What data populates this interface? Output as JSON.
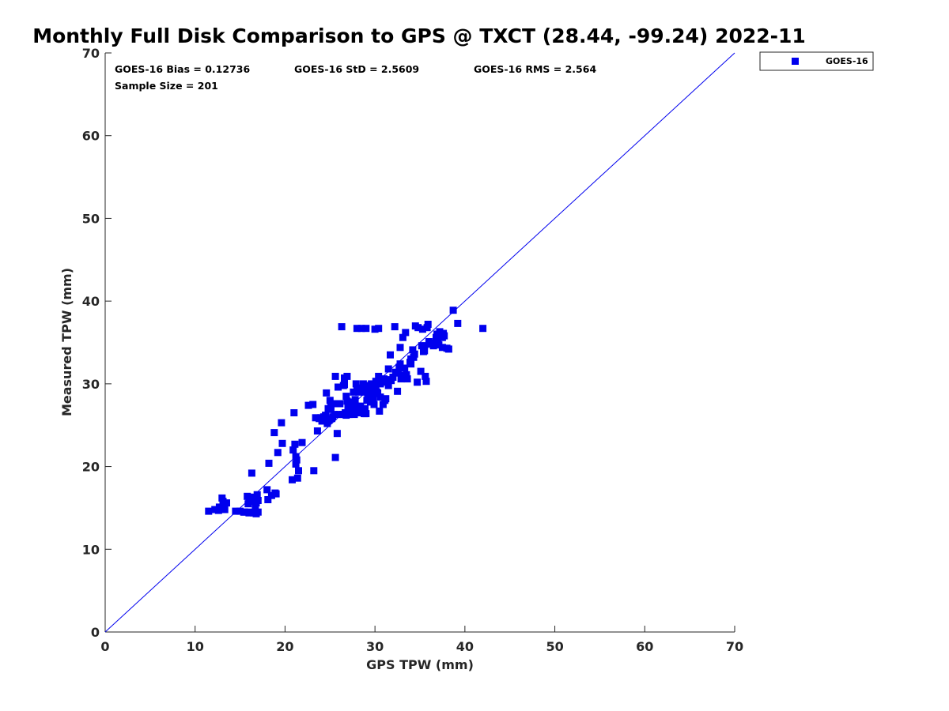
{
  "chart_data": {
    "type": "scatter",
    "title": "Monthly Full Disk Comparison to GPS @ TXCT (28.44, -99.24) 2022-11",
    "xlabel": "GPS TPW (mm)",
    "ylabel": "Measured TPW (mm)",
    "xlim": [
      0,
      70
    ],
    "ylim": [
      0,
      70
    ],
    "x_ticks": [
      "0",
      "10",
      "20",
      "30",
      "40",
      "50",
      "60",
      "70"
    ],
    "y_ticks": [
      "0",
      "10",
      "20",
      "30",
      "40",
      "50",
      "60",
      "70"
    ],
    "grid": false,
    "legend_position": "outside-top-right",
    "reference_line": {
      "type": "one-to-one",
      "from": [
        0,
        0
      ],
      "to": [
        70,
        70
      ]
    },
    "stats": {
      "bias": "GOES-16 Bias = 0.12736",
      "std": "GOES-16 StD = 2.5609",
      "rms": "GOES-16 RMS = 2.564",
      "sample_size": "Sample Size = 201"
    },
    "series": [
      {
        "name": "GOES-16",
        "color": "#0000ee",
        "marker": "square",
        "points": [
          [
            11.5,
            14.6
          ],
          [
            12.2,
            14.8
          ],
          [
            12.6,
            14.7
          ],
          [
            12.9,
            15.0
          ],
          [
            13.0,
            16.2
          ],
          [
            13.2,
            15.4
          ],
          [
            13.3,
            14.8
          ],
          [
            13.5,
            15.6
          ],
          [
            12.7,
            15.1
          ],
          [
            13.1,
            15.8
          ],
          [
            14.5,
            14.6
          ],
          [
            15.0,
            14.6
          ],
          [
            15.5,
            14.5
          ],
          [
            15.8,
            16.4
          ],
          [
            16.0,
            14.4
          ],
          [
            16.2,
            15.8
          ],
          [
            16.4,
            16.3
          ],
          [
            16.5,
            14.4
          ],
          [
            16.7,
            15.2
          ],
          [
            16.8,
            14.3
          ],
          [
            16.9,
            16.6
          ],
          [
            17.0,
            15.9
          ],
          [
            16.6,
            16.0
          ],
          [
            16.3,
            19.2
          ],
          [
            16.0,
            16.2
          ],
          [
            15.9,
            15.5
          ],
          [
            17.0,
            14.5
          ],
          [
            16.8,
            15.6
          ],
          [
            15.4,
            14.5
          ],
          [
            16.1,
            14.5
          ],
          [
            18.0,
            17.2
          ],
          [
            18.1,
            16.0
          ],
          [
            18.5,
            16.5
          ],
          [
            18.9,
            16.8
          ],
          [
            19.0,
            16.7
          ],
          [
            18.2,
            20.4
          ],
          [
            18.8,
            24.1
          ],
          [
            19.2,
            21.7
          ],
          [
            19.7,
            22.8
          ],
          [
            19.6,
            25.3
          ],
          [
            20.8,
            18.4
          ],
          [
            20.9,
            22.0
          ],
          [
            21.0,
            26.5
          ],
          [
            21.1,
            22.7
          ],
          [
            21.2,
            20.3
          ],
          [
            21.2,
            21.2
          ],
          [
            21.3,
            20.8
          ],
          [
            21.4,
            18.6
          ],
          [
            21.5,
            19.5
          ],
          [
            21.9,
            22.9
          ],
          [
            23.1,
            27.5
          ],
          [
            23.2,
            19.5
          ],
          [
            23.4,
            25.9
          ],
          [
            23.6,
            24.3
          ],
          [
            23.8,
            25.8
          ],
          [
            24.0,
            25.9
          ],
          [
            24.1,
            25.5
          ],
          [
            24.3,
            26.0
          ],
          [
            24.5,
            26.2
          ],
          [
            24.6,
            28.9
          ],
          [
            24.7,
            25.2
          ],
          [
            24.8,
            27.0
          ],
          [
            24.9,
            25.6
          ],
          [
            25.0,
            28.0
          ],
          [
            25.1,
            27.3
          ],
          [
            25.2,
            25.8
          ],
          [
            25.3,
            26.0
          ],
          [
            25.4,
            27.6
          ],
          [
            25.5,
            26.3
          ],
          [
            25.6,
            30.9
          ],
          [
            25.6,
            21.1
          ],
          [
            25.8,
            24.0
          ],
          [
            25.9,
            29.6
          ],
          [
            26.0,
            26.3
          ],
          [
            26.1,
            27.6
          ],
          [
            26.3,
            36.9
          ],
          [
            26.4,
            26.3
          ],
          [
            26.5,
            29.8
          ],
          [
            26.6,
            30.7
          ],
          [
            26.7,
            26.5
          ],
          [
            26.8,
            26.2
          ],
          [
            26.8,
            28.5
          ],
          [
            26.9,
            30.9
          ],
          [
            26.9,
            27.9
          ],
          [
            27.0,
            27.2
          ],
          [
            27.1,
            26.3
          ],
          [
            27.2,
            26.9
          ],
          [
            27.3,
            26.4
          ],
          [
            27.4,
            27.8
          ],
          [
            27.5,
            26.5
          ],
          [
            27.6,
            29.0
          ],
          [
            27.7,
            26.3
          ],
          [
            27.8,
            28.1
          ],
          [
            27.9,
            30.0
          ],
          [
            27.9,
            27.3
          ],
          [
            28.0,
            36.7
          ],
          [
            28.0,
            29.5
          ],
          [
            28.1,
            26.5
          ],
          [
            28.2,
            29.0
          ],
          [
            28.3,
            29.3
          ],
          [
            28.4,
            26.8
          ],
          [
            28.4,
            27.3
          ],
          [
            28.5,
            36.7
          ],
          [
            28.6,
            29.3
          ],
          [
            28.7,
            30.0
          ],
          [
            28.8,
            26.4
          ],
          [
            28.8,
            29.0
          ],
          [
            28.9,
            27.0
          ],
          [
            29.0,
            36.7
          ],
          [
            29.0,
            26.4
          ],
          [
            29.1,
            28.0
          ],
          [
            29.1,
            29.5
          ],
          [
            29.2,
            28.4
          ],
          [
            29.3,
            29.8
          ],
          [
            29.4,
            29.0
          ],
          [
            29.5,
            29.5
          ],
          [
            29.6,
            30.0
          ],
          [
            29.8,
            28.8
          ],
          [
            29.8,
            28.3
          ],
          [
            30.0,
            36.6
          ],
          [
            30.1,
            29.5
          ],
          [
            30.1,
            30.3
          ],
          [
            30.2,
            29.0
          ],
          [
            30.3,
            28.9
          ],
          [
            30.4,
            36.7
          ],
          [
            30.4,
            30.9
          ],
          [
            30.5,
            26.7
          ],
          [
            30.6,
            28.4
          ],
          [
            30.6,
            30.0
          ],
          [
            30.8,
            30.2
          ],
          [
            30.9,
            27.5
          ],
          [
            31.0,
            30.6
          ],
          [
            31.1,
            28.0
          ],
          [
            31.2,
            28.2
          ],
          [
            31.5,
            31.8
          ],
          [
            31.5,
            29.8
          ],
          [
            31.7,
            33.5
          ],
          [
            31.8,
            30.4
          ],
          [
            32.0,
            30.8
          ],
          [
            32.2,
            36.9
          ],
          [
            32.5,
            29.1
          ],
          [
            32.6,
            31.3
          ],
          [
            32.7,
            32.0
          ],
          [
            32.8,
            34.4
          ],
          [
            32.8,
            32.4
          ],
          [
            32.9,
            30.6
          ],
          [
            33.0,
            31.0
          ],
          [
            33.1,
            35.6
          ],
          [
            33.2,
            30.8
          ],
          [
            33.4,
            36.2
          ],
          [
            33.5,
            31.1
          ],
          [
            33.6,
            30.6
          ],
          [
            33.9,
            32.6
          ],
          [
            34.0,
            32.4
          ],
          [
            34.2,
            34.1
          ],
          [
            34.3,
            33.2
          ],
          [
            34.4,
            33.6
          ],
          [
            34.5,
            37.0
          ],
          [
            34.7,
            30.2
          ],
          [
            34.8,
            36.8
          ],
          [
            35.1,
            31.5
          ],
          [
            35.2,
            34.6
          ],
          [
            35.3,
            36.6
          ],
          [
            35.4,
            33.9
          ],
          [
            35.5,
            34.6
          ],
          [
            35.6,
            30.9
          ],
          [
            35.7,
            30.3
          ],
          [
            35.8,
            36.8
          ],
          [
            35.9,
            37.2
          ],
          [
            36.0,
            35.1
          ],
          [
            36.2,
            34.8
          ],
          [
            36.5,
            34.6
          ],
          [
            36.7,
            34.9
          ],
          [
            36.8,
            35.6
          ],
          [
            36.9,
            36.0
          ],
          [
            37.0,
            35.2
          ],
          [
            37.1,
            34.7
          ],
          [
            37.2,
            36.3
          ],
          [
            37.3,
            36.1
          ],
          [
            37.5,
            35.6
          ],
          [
            37.5,
            34.4
          ],
          [
            37.6,
            36.1
          ],
          [
            37.7,
            35.8
          ],
          [
            38.0,
            34.3
          ],
          [
            38.2,
            34.2
          ],
          [
            38.7,
            38.9
          ],
          [
            39.2,
            37.3
          ],
          [
            42.0,
            36.7
          ],
          [
            27.2,
            27.5
          ],
          [
            26.6,
            29.9
          ],
          [
            25.1,
            26.9
          ],
          [
            27.8,
            27.1
          ],
          [
            29.5,
            27.8
          ],
          [
            31.5,
            30.5
          ],
          [
            33.3,
            31.9
          ],
          [
            32.3,
            31.4
          ],
          [
            34.0,
            33.0
          ],
          [
            35.5,
            34.0
          ],
          [
            29.9,
            27.5
          ],
          [
            27.0,
            26.9
          ],
          [
            22.6,
            27.4
          ]
        ]
      }
    ]
  }
}
